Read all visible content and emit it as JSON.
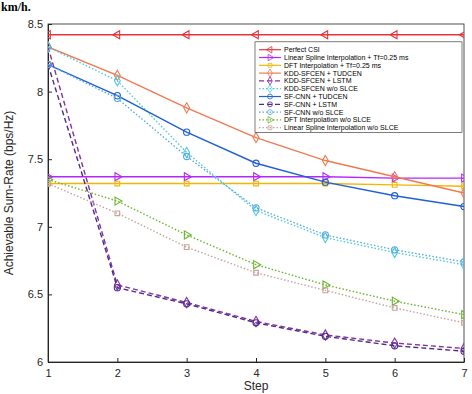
{
  "chart_data": {
    "type": "line",
    "annotations": [
      "km/h."
    ],
    "x_label": "Step",
    "y_label": "Achievable Sum-Rate (bps/Hz)",
    "x": [
      1,
      2,
      3,
      4,
      5,
      6,
      7
    ],
    "xlim": [
      1,
      7
    ],
    "xticks": [
      1,
      2,
      3,
      4,
      5,
      6,
      7
    ],
    "ylim": [
      6,
      8.5
    ],
    "yticks": [
      6,
      6.5,
      7,
      7.5,
      8,
      8.5
    ],
    "grid": false,
    "legend": "upper right",
    "series": [
      {
        "name": "Perfect CSI",
        "color": "#e8323c",
        "marker": "triangle-left",
        "line_style": "solid",
        "values": [
          8.42,
          8.42,
          8.42,
          8.42,
          8.42,
          8.42,
          8.42
        ]
      },
      {
        "name": "Linear Spline Interpolation + Tf=0.25 ms",
        "color": "#b526ff",
        "marker": "triangle-right",
        "line_style": "solid",
        "values": [
          7.37,
          7.37,
          7.37,
          7.37,
          7.37,
          7.36,
          7.36
        ]
      },
      {
        "name": "DFT Interpolation + Tf=0.25 ms",
        "color": "#f2b705",
        "marker": "square",
        "line_style": "solid",
        "values": [
          7.32,
          7.32,
          7.32,
          7.32,
          7.32,
          7.31,
          7.3
        ]
      },
      {
        "name": "KDD-SFCEN + TUDCEN",
        "color": "#f07a50",
        "marker": "diamond",
        "line_style": "solid",
        "values": [
          8.33,
          8.12,
          7.88,
          7.66,
          7.49,
          7.37,
          7.25
        ]
      },
      {
        "name": "KDD-SFCEN + LSTM",
        "color": "#8b2fa0",
        "marker": "diamond",
        "line_style": "dashed",
        "values": [
          8.33,
          6.57,
          6.44,
          6.3,
          6.2,
          6.14,
          6.1
        ]
      },
      {
        "name": "KDD-SFCEN w/o SLCE",
        "color": "#4ecae0",
        "marker": "diamond",
        "line_style": "dotted",
        "values": [
          8.33,
          8.08,
          7.55,
          7.12,
          6.92,
          6.81,
          6.72
        ]
      },
      {
        "name": "SF-CNN + TUDCEN",
        "color": "#1f5fd6",
        "marker": "circle",
        "line_style": "solid",
        "values": [
          8.2,
          7.97,
          7.7,
          7.47,
          7.33,
          7.23,
          7.15
        ]
      },
      {
        "name": "SF-CNN + LSTM",
        "color": "#4b2c8c",
        "marker": "circle",
        "line_style": "dashed",
        "values": [
          8.2,
          6.55,
          6.43,
          6.29,
          6.19,
          6.12,
          6.08
        ]
      },
      {
        "name": "SF-CNN w/o SLCE",
        "color": "#5aa9e0",
        "marker": "circle",
        "line_style": "dotted",
        "values": [
          8.2,
          7.95,
          7.52,
          7.14,
          6.94,
          6.83,
          6.74
        ]
      },
      {
        "name": "DFT Interpolation w/o SLCE",
        "color": "#6ab52d",
        "marker": "triangle-right",
        "line_style": "dotted",
        "values": [
          7.35,
          7.19,
          6.94,
          6.72,
          6.57,
          6.45,
          6.35
        ]
      },
      {
        "name": "Linear Spline Interpolation w/o SLCE",
        "color": "#c8a39c",
        "marker": "square",
        "line_style": "dotted",
        "values": [
          7.32,
          7.1,
          6.85,
          6.66,
          6.53,
          6.4,
          6.29
        ]
      }
    ]
  }
}
